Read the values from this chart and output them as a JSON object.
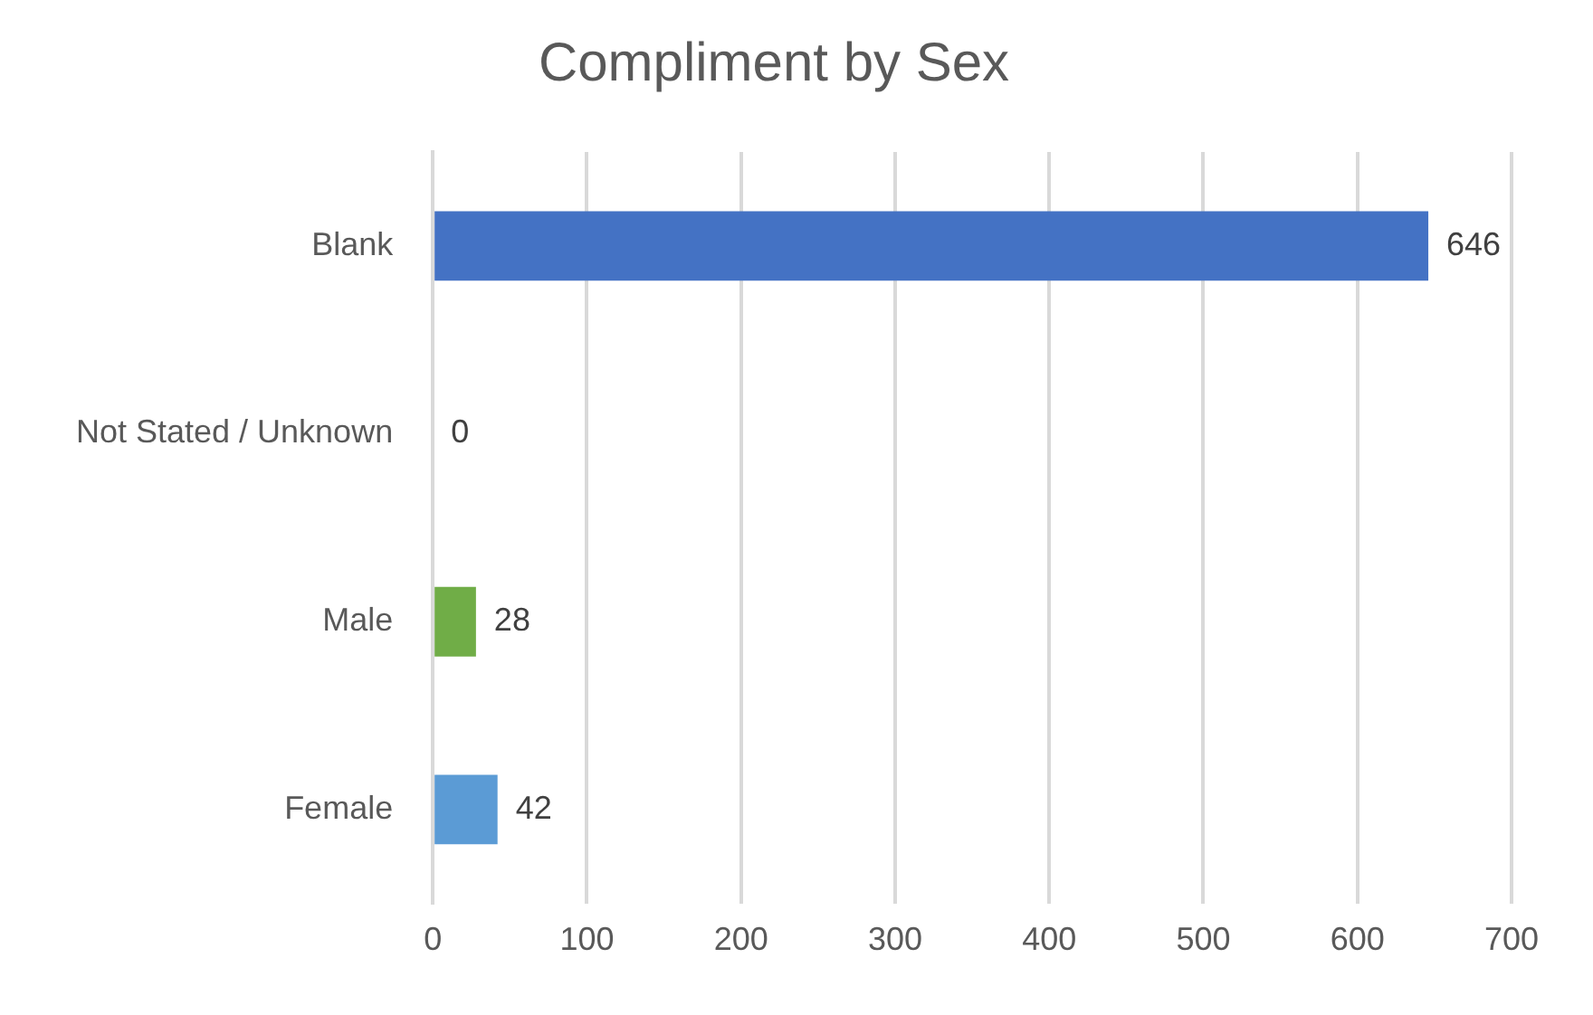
{
  "chart_data": {
    "type": "bar",
    "orientation": "horizontal",
    "title": "Compliment by Sex",
    "categories": [
      "Blank",
      "Not Stated / Unknown",
      "Male",
      "Female"
    ],
    "values": [
      646,
      0,
      28,
      42
    ],
    "colors": [
      "#4472c4",
      "#a5a5a5",
      "#70ad47",
      "#5b9bd5"
    ],
    "xlim": [
      0,
      700
    ],
    "xticks": [
      0,
      100,
      200,
      300,
      400,
      500,
      600,
      700
    ],
    "grid": "x",
    "legend": false,
    "data_labels": true
  }
}
